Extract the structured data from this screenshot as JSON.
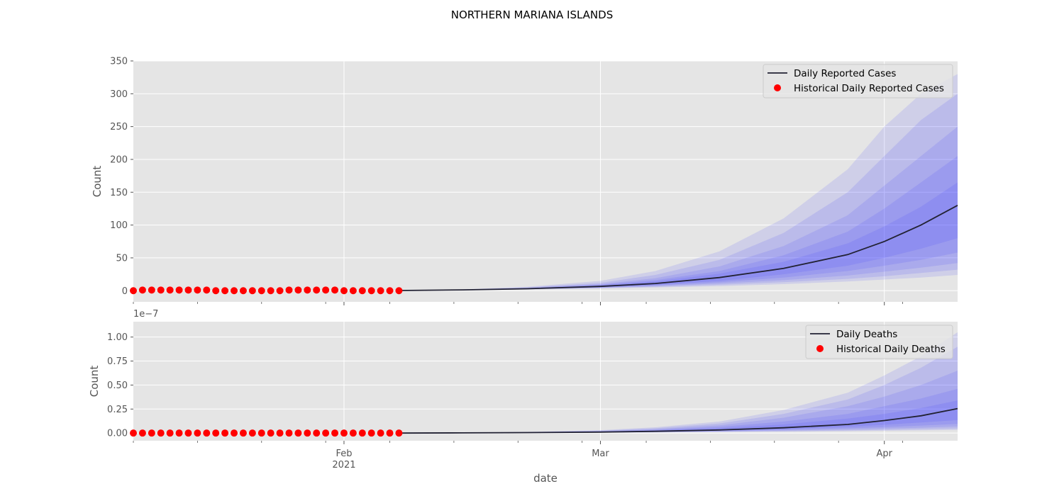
{
  "title": "NORTHERN MARIANA ISLANDS",
  "xlabel": "date",
  "x_ticks": [
    {
      "date": "2021-02-01",
      "label": "Feb",
      "sublabel": "2021"
    },
    {
      "date": "2021-03-01",
      "label": "Mar",
      "sublabel": ""
    },
    {
      "date": "2021-04-01",
      "label": "Apr",
      "sublabel": ""
    }
  ],
  "colors": {
    "panel_bg": "#e5e5e5",
    "grid": "#ffffff",
    "line": "#222233",
    "historical": "#ff0000",
    "band": "#3333ff"
  },
  "chart_data": [
    {
      "type": "line",
      "name": "cases",
      "ylabel": "Count",
      "xlim": [
        "2021-01-09",
        "2021-04-09"
      ],
      "ylim": [
        -17,
        350
      ],
      "yticks": [
        0,
        50,
        100,
        150,
        200,
        250,
        300,
        350
      ],
      "ytick_labels": [
        "0",
        "50",
        "100",
        "150",
        "200",
        "250",
        "300",
        "350"
      ],
      "offset_text": "",
      "legend_position": "top-right",
      "grid": true,
      "series": [
        {
          "name": "Daily Reported Cases",
          "kind": "line",
          "x": [
            "2021-02-07",
            "2021-02-14",
            "2021-02-21",
            "2021-03-01",
            "2021-03-07",
            "2021-03-14",
            "2021-03-21",
            "2021-03-28",
            "2021-04-01",
            "2021-04-05",
            "2021-04-09"
          ],
          "y": [
            0.3,
            1.2,
            3,
            6.5,
            11,
            20,
            34,
            55,
            75,
            100,
            130
          ]
        },
        {
          "name": "Historical Daily Reported Cases",
          "kind": "scatter",
          "x": [
            "2021-01-09",
            "2021-01-10",
            "2021-01-11",
            "2021-01-12",
            "2021-01-13",
            "2021-01-14",
            "2021-01-15",
            "2021-01-16",
            "2021-01-17",
            "2021-01-18",
            "2021-01-19",
            "2021-01-20",
            "2021-01-21",
            "2021-01-22",
            "2021-01-23",
            "2021-01-24",
            "2021-01-25",
            "2021-01-26",
            "2021-01-27",
            "2021-01-28",
            "2021-01-29",
            "2021-01-30",
            "2021-01-31",
            "2021-02-01",
            "2021-02-02",
            "2021-02-03",
            "2021-02-04",
            "2021-02-05",
            "2021-02-06",
            "2021-02-07"
          ],
          "y": [
            0,
            1,
            1,
            1,
            1,
            1,
            1,
            1,
            1,
            0,
            0,
            0,
            0,
            0,
            0,
            0,
            0,
            1,
            1,
            1,
            1,
            1,
            1,
            0,
            0,
            0,
            0,
            0,
            0,
            0
          ]
        }
      ],
      "bands": {
        "x": [
          "2021-02-07",
          "2021-02-14",
          "2021-02-21",
          "2021-03-01",
          "2021-03-07",
          "2021-03-14",
          "2021-03-21",
          "2021-03-28",
          "2021-04-01",
          "2021-04-05",
          "2021-04-09"
        ],
        "levels": [
          {
            "lower": [
              0.3,
              0.8,
              2.0,
              3.5,
              5,
              7,
              10,
              14,
              17,
              20,
              24
            ],
            "upper": [
              0.3,
              2.0,
              6,
              15,
              30,
              60,
              110,
              185,
              250,
              300,
              330
            ]
          },
          {
            "lower": [
              0.3,
              0.9,
              2.2,
              4.0,
              6,
              9,
              13,
              18,
              22,
              27,
              32
            ],
            "upper": [
              0.3,
              1.8,
              5,
              12,
              24,
              47,
              88,
              150,
              205,
              260,
              300
            ]
          },
          {
            "lower": [
              0.3,
              1.0,
              2.4,
              4.5,
              7,
              11,
              16,
              23,
              29,
              35,
              42
            ],
            "upper": [
              0.3,
              1.6,
              4.5,
              10,
              19,
              37,
              68,
              115,
              160,
              205,
              250
            ]
          },
          {
            "lower": [
              0.3,
              1.0,
              2.6,
              5.0,
              8,
              13,
              20,
              30,
              38,
              47,
              58
            ],
            "upper": [
              0.3,
              1.5,
              4,
              9,
              16,
              30,
              54,
              90,
              125,
              165,
              205
            ]
          },
          {
            "lower": [
              0.3,
              1.1,
              2.8,
              5.5,
              9,
              15,
              25,
              38,
              50,
              64,
              80
            ],
            "upper": [
              0.3,
              1.4,
              3.6,
              8,
              14,
              26,
              44,
              72,
              98,
              128,
              165
            ]
          }
        ]
      }
    },
    {
      "type": "line",
      "name": "deaths",
      "ylabel": "Count",
      "xlim": [
        "2021-01-09",
        "2021-04-09"
      ],
      "ylim": [
        -0.08,
        1.16
      ],
      "yticks": [
        0,
        0.25,
        0.5,
        0.75,
        1.0
      ],
      "ytick_labels": [
        "0.00",
        "0.25",
        "0.50",
        "0.75",
        "1.00"
      ],
      "offset_text": "1e−7",
      "legend_position": "top-right",
      "grid": true,
      "series": [
        {
          "name": "Daily Deaths",
          "kind": "line",
          "x": [
            "2021-02-07",
            "2021-02-14",
            "2021-02-21",
            "2021-03-01",
            "2021-03-07",
            "2021-03-14",
            "2021-03-21",
            "2021-03-28",
            "2021-04-01",
            "2021-04-05",
            "2021-04-09"
          ],
          "y": [
            0,
            0.002,
            0.005,
            0.01,
            0.018,
            0.032,
            0.055,
            0.09,
            0.13,
            0.18,
            0.255
          ]
        },
        {
          "name": "Historical Daily Deaths",
          "kind": "scatter",
          "x": [
            "2021-01-09",
            "2021-01-10",
            "2021-01-11",
            "2021-01-12",
            "2021-01-13",
            "2021-01-14",
            "2021-01-15",
            "2021-01-16",
            "2021-01-17",
            "2021-01-18",
            "2021-01-19",
            "2021-01-20",
            "2021-01-21",
            "2021-01-22",
            "2021-01-23",
            "2021-01-24",
            "2021-01-25",
            "2021-01-26",
            "2021-01-27",
            "2021-01-28",
            "2021-01-29",
            "2021-01-30",
            "2021-01-31",
            "2021-02-01",
            "2021-02-02",
            "2021-02-03",
            "2021-02-04",
            "2021-02-05",
            "2021-02-06",
            "2021-02-07"
          ],
          "y": [
            0,
            0,
            0,
            0,
            0,
            0,
            0,
            0,
            0,
            0,
            0,
            0,
            0,
            0,
            0,
            0,
            0,
            0,
            0,
            0,
            0,
            0,
            0,
            0,
            0,
            0,
            0,
            0,
            0,
            0
          ]
        }
      ],
      "bands": {
        "x": [
          "2021-02-07",
          "2021-02-14",
          "2021-02-21",
          "2021-03-01",
          "2021-03-07",
          "2021-03-14",
          "2021-03-21",
          "2021-03-28",
          "2021-04-01",
          "2021-04-05",
          "2021-04-09"
        ],
        "levels": [
          {
            "lower": [
              0,
              0.001,
              0.002,
              0.004,
              0.006,
              0.01,
              0.014,
              0.02,
              0.024,
              0.028,
              0.032
            ],
            "upper": [
              0,
              0.004,
              0.012,
              0.03,
              0.06,
              0.12,
              0.24,
              0.42,
              0.6,
              0.8,
              1.05
            ]
          },
          {
            "lower": [
              0,
              0.001,
              0.003,
              0.005,
              0.008,
              0.013,
              0.019,
              0.027,
              0.033,
              0.04,
              0.048
            ],
            "upper": [
              0,
              0.004,
              0.01,
              0.025,
              0.05,
              0.1,
              0.2,
              0.35,
              0.5,
              0.68,
              0.9
            ]
          },
          {
            "lower": [
              0,
              0.001,
              0.003,
              0.006,
              0.01,
              0.017,
              0.026,
              0.037,
              0.046,
              0.056,
              0.068
            ],
            "upper": [
              0,
              0.003,
              0.009,
              0.021,
              0.04,
              0.08,
              0.16,
              0.28,
              0.38,
              0.5,
              0.65
            ]
          },
          {
            "lower": [
              0,
              0.002,
              0.004,
              0.007,
              0.012,
              0.021,
              0.034,
              0.05,
              0.062,
              0.078,
              0.095
            ],
            "upper": [
              0,
              0.003,
              0.008,
              0.018,
              0.033,
              0.064,
              0.12,
              0.2,
              0.28,
              0.36,
              0.46
            ]
          },
          {
            "lower": [
              0,
              0.002,
              0.004,
              0.008,
              0.014,
              0.025,
              0.042,
              0.066,
              0.086,
              0.11,
              0.135
            ],
            "upper": [
              0,
              0.003,
              0.007,
              0.015,
              0.027,
              0.05,
              0.09,
              0.15,
              0.2,
              0.26,
              0.34
            ]
          }
        ]
      }
    }
  ]
}
